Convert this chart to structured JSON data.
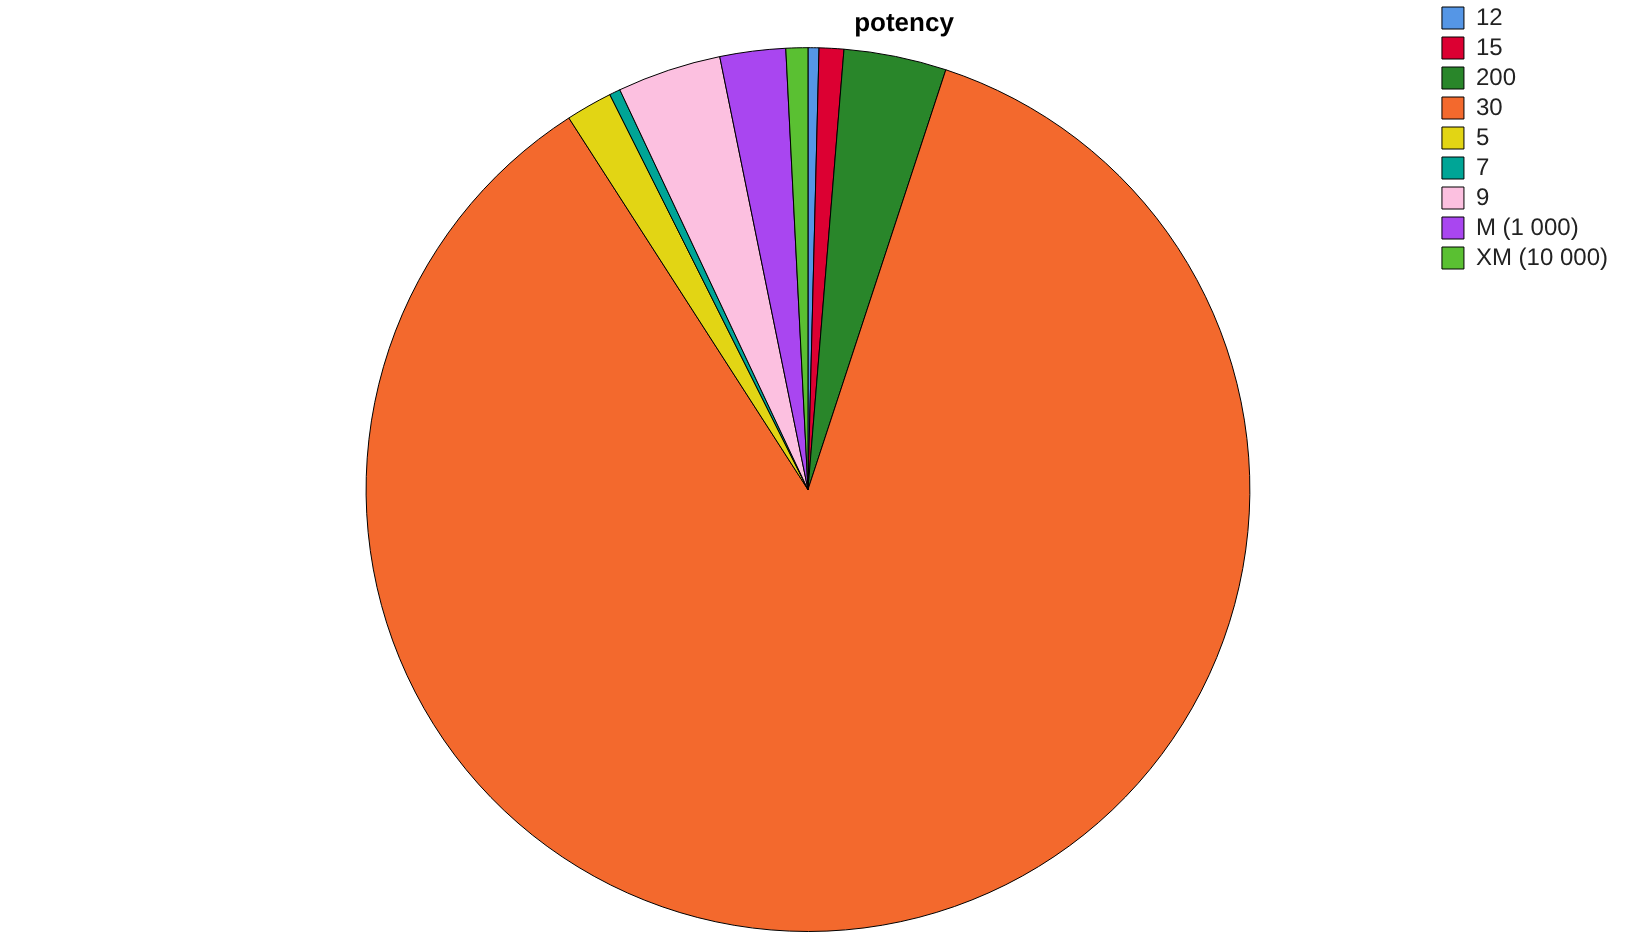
{
  "chart_data": {
    "type": "pie",
    "title": "potency",
    "categories": [
      "12",
      "15",
      "200",
      "30",
      "5",
      "7",
      "9",
      "M (1 000)",
      "XM (10 000)"
    ],
    "values": [
      0.4,
      0.9,
      3.75,
      85.85,
      1.7,
      0.4,
      3.8,
      2.4,
      0.8
    ],
    "colors": [
      "#5596e6",
      "#dc0032",
      "#29862a",
      "#f3692d",
      "#e2d514",
      "#00a596",
      "#fcc0e0",
      "#a946f0",
      "#5ac032"
    ],
    "legend": "top right"
  }
}
